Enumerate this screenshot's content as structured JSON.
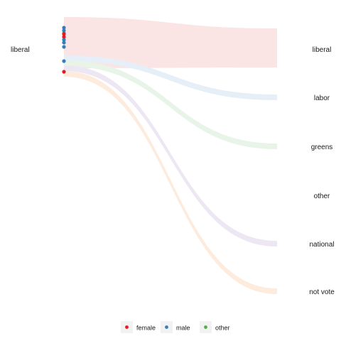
{
  "chart_data": {
    "type": "sankey",
    "source": {
      "label": "liberal"
    },
    "targets": [
      "liberal",
      "labor",
      "greens",
      "other",
      "national",
      "not vote"
    ],
    "flows": [
      {
        "target": "liberal",
        "share": 0.78,
        "color": "#FBE4E4"
      },
      {
        "target": "labor",
        "share": 0.06,
        "color": "#E6EEF8"
      },
      {
        "target": "greens",
        "share": 0.05,
        "color": "#E8F4E8"
      },
      {
        "target": "other",
        "share": 0.0,
        "color": "#F1ECF5"
      },
      {
        "target": "national",
        "share": 0.05,
        "color": "#EDE7F3"
      },
      {
        "target": "not vote",
        "share": 0.06,
        "color": "#FDEBDD"
      }
    ],
    "points": [
      {
        "group": "male"
      },
      {
        "group": "male"
      },
      {
        "group": "male"
      },
      {
        "group": "female"
      },
      {
        "group": "female"
      },
      {
        "group": "male"
      },
      {
        "group": "male"
      },
      {
        "group": "male"
      },
      {
        "group": "male"
      },
      {
        "group": "female"
      }
    ],
    "legend": {
      "position": "bottom",
      "entries": [
        {
          "name": "female",
          "color": "#E41A1C"
        },
        {
          "name": "male",
          "color": "#377EB8"
        },
        {
          "name": "other",
          "color": "#4DAF4A"
        }
      ]
    }
  }
}
